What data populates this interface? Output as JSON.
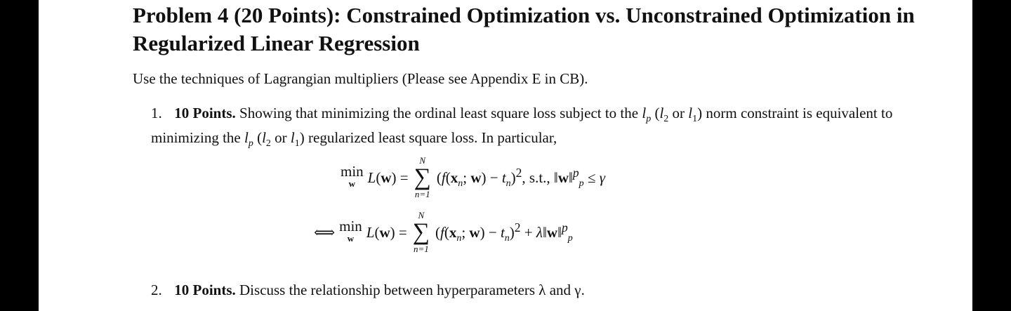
{
  "title": "Problem 4 (20 Points): Constrained Optimization vs. Unconstrained Optimization in Regularized Linear Regression",
  "intro": "Use the techniques of Lagrangian multipliers (Please see Appendix E in CB).",
  "item1": {
    "number": "1.",
    "points": "10 Points.",
    "text_a": "Showing that minimizing the ordinal least square loss subject to the",
    "text_b": "norm constraint is equivalent to minimizing the",
    "text_c": "regularized least square loss. In particular,"
  },
  "equations": {
    "eq1": "min L(w) = Σ(f(xn; w) − tn)², s.t., ‖w‖ᵖp ≤ γ",
    "eq2": "⟺ min L(w) = Σ(f(xn; w) − tn)² + λ‖w‖ᵖp",
    "sum_upper": "N",
    "sum_lower": "n=1",
    "min_sub": "w"
  },
  "item2": {
    "number": "2.",
    "points": "10 Points.",
    "text": "Discuss the relationship between hyperparameters λ and γ."
  }
}
